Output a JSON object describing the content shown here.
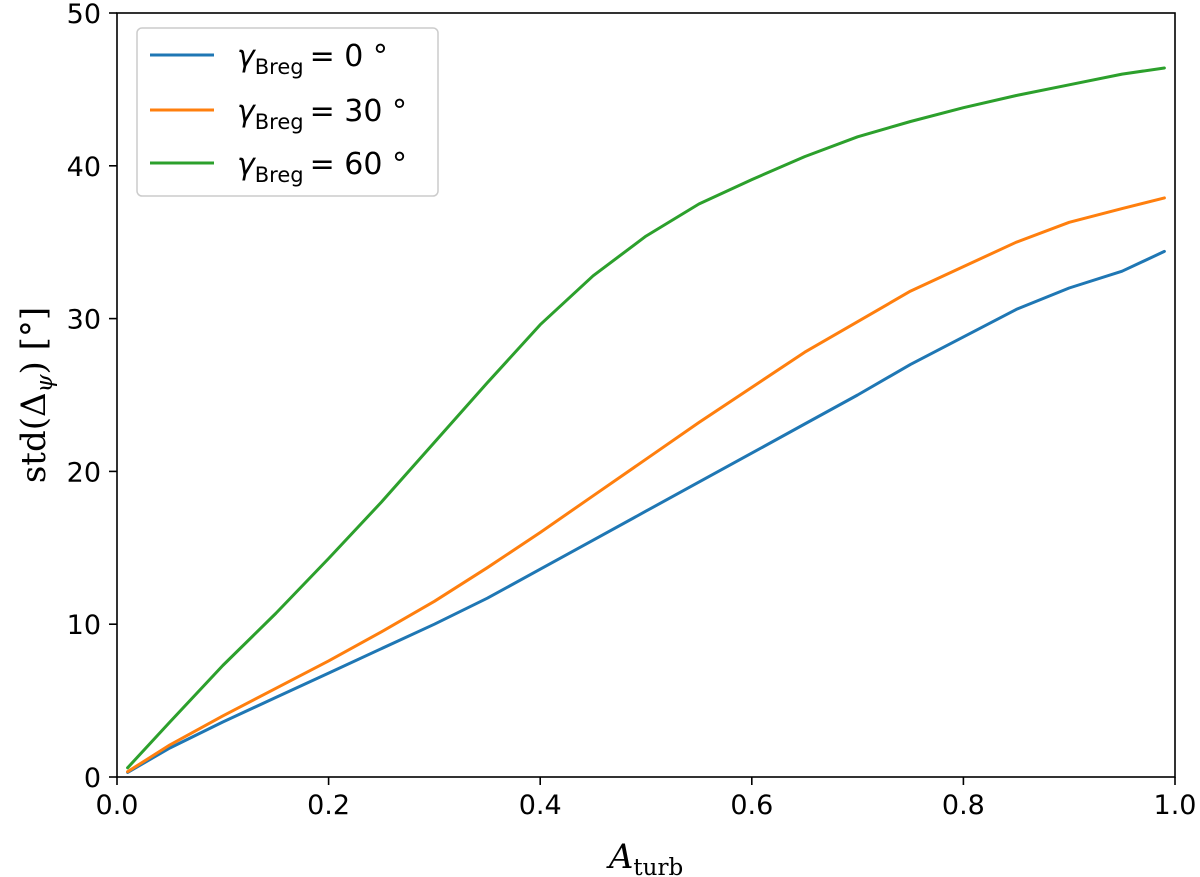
{
  "chart_data": {
    "type": "line",
    "title": "",
    "xlabel": "A",
    "xlabel_sub": "turb",
    "ylabel": "std(Δ",
    "ylabel_sub": "ψ",
    "ylabel_unit": ") [°]",
    "xlim": [
      0.0,
      1.0
    ],
    "ylim": [
      0,
      50
    ],
    "xticks": [
      0.0,
      0.2,
      0.4,
      0.6,
      0.8,
      1.0
    ],
    "xtick_labels": [
      "0.0",
      "0.2",
      "0.4",
      "0.6",
      "0.8",
      "1.0"
    ],
    "yticks": [
      0,
      10,
      20,
      30,
      40,
      50
    ],
    "ytick_labels": [
      "0",
      "10",
      "20",
      "30",
      "40",
      "50"
    ],
    "grid": false,
    "legend_position": "top-left",
    "x": [
      0.01,
      0.05,
      0.1,
      0.15,
      0.2,
      0.25,
      0.3,
      0.35,
      0.4,
      0.45,
      0.5,
      0.55,
      0.6,
      0.65,
      0.7,
      0.75,
      0.8,
      0.85,
      0.9,
      0.95,
      0.99
    ],
    "series": [
      {
        "name": "γBreg = 0°",
        "legend_symbol": "γ",
        "legend_sub": "Breg",
        "legend_value": "= 0 °",
        "color": "#1f77b4",
        "values": [
          0.3,
          1.9,
          3.6,
          5.2,
          6.8,
          8.4,
          10.0,
          11.7,
          13.6,
          15.5,
          17.4,
          19.3,
          21.2,
          23.1,
          25.0,
          27.0,
          28.8,
          30.6,
          32.0,
          33.1,
          34.4
        ]
      },
      {
        "name": "γBreg = 30°",
        "legend_symbol": "γ",
        "legend_sub": "Breg",
        "legend_value": "= 30 °",
        "color": "#ff7f0e",
        "values": [
          0.35,
          2.1,
          4.0,
          5.8,
          7.6,
          9.5,
          11.5,
          13.7,
          16.0,
          18.4,
          20.8,
          23.2,
          25.5,
          27.8,
          29.8,
          31.8,
          33.4,
          35.0,
          36.3,
          37.2,
          37.9
        ]
      },
      {
        "name": "γBreg = 60°",
        "legend_symbol": "γ",
        "legend_sub": "Breg",
        "legend_value": "= 60 °",
        "color": "#2ca02c",
        "values": [
          0.6,
          3.6,
          7.3,
          10.7,
          14.3,
          18.0,
          21.9,
          25.8,
          29.6,
          32.8,
          35.4,
          37.5,
          39.1,
          40.6,
          41.9,
          42.9,
          43.8,
          44.6,
          45.3,
          46.0,
          46.4
        ]
      }
    ]
  }
}
